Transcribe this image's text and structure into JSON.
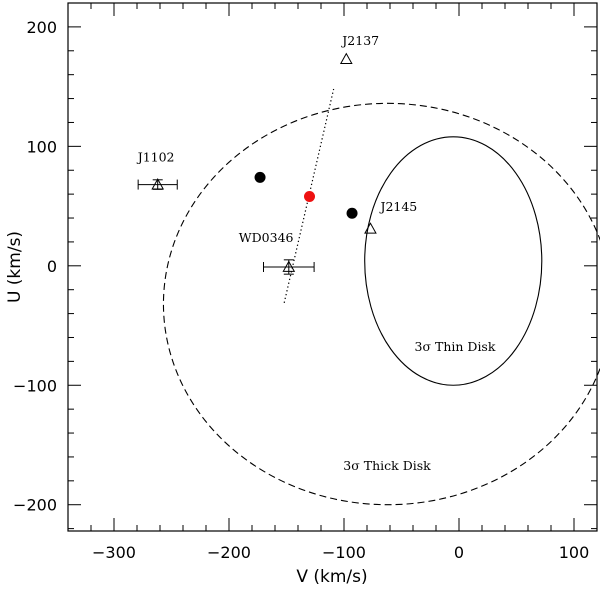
{
  "chart_data": {
    "type": "scatter",
    "xlabel": "V (km/s)",
    "ylabel": "U (km/s)",
    "xlim": [
      -340,
      120
    ],
    "ylim": [
      -222,
      220
    ],
    "xticks": [
      -300,
      -200,
      -100,
      0,
      100
    ],
    "yticks": [
      -200,
      -100,
      0,
      100,
      200
    ],
    "grid": false,
    "legend": "none",
    "triangles": [
      {
        "name": "J2137",
        "x": -98,
        "y": 173
      },
      {
        "name": "J1102",
        "x": -262,
        "y": 68,
        "xerr": 17,
        "yerr": 4
      },
      {
        "name": "WD0346",
        "x": -148,
        "y": -1,
        "xerr": 22,
        "yerr": 6
      },
      {
        "name": "J2145",
        "x": -77,
        "y": 31
      }
    ],
    "filled_points": [
      {
        "x": -173,
        "y": 74,
        "color": "#000000"
      },
      {
        "x": -93,
        "y": 44,
        "color": "#000000"
      },
      {
        "x": -130,
        "y": 58,
        "color": "#ee1111"
      }
    ],
    "dotted_line": {
      "x": [
        -152,
        -109
      ],
      "y": [
        -31,
        148
      ]
    },
    "ellipses": [
      {
        "label": "3σ Thin Disk",
        "center": [
          -5,
          4
        ],
        "semi_v": 77,
        "semi_u": 104,
        "style": "solid"
      },
      {
        "label": "3σ Thick Disk",
        "center": [
          -62,
          -32
        ],
        "semi_v": 195,
        "semi_u": 168,
        "style": "dashed"
      }
    ]
  }
}
